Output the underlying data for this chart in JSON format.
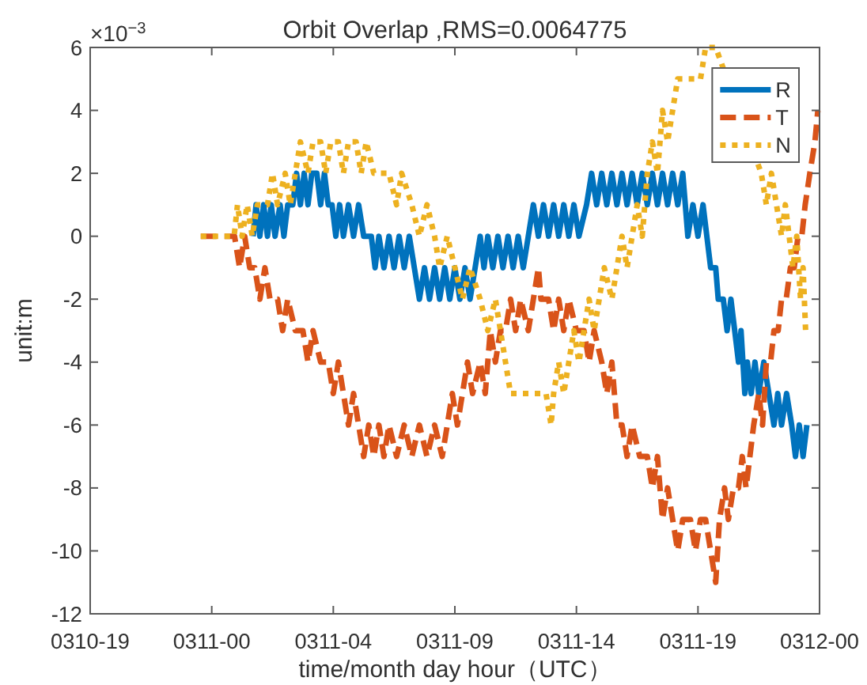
{
  "chart_data": {
    "type": "line",
    "title": "Orbit Overlap ,RMS=0.0064775",
    "xlabel": "time/month day hour（UTC）",
    "ylabel": "unit:m",
    "annotations": [
      "×10$^{−3}$"
    ],
    "xlim": [
      "--03-10T19:12",
      "--03-12T00:00"
    ],
    "xticks": [
      {
        "value": "--03-10T19:12",
        "label": "0310-19"
      },
      {
        "value": "--03-11T00:00",
        "label": "0311-00"
      },
      {
        "value": "--03-11T04:48",
        "label": "0311-04"
      },
      {
        "value": "--03-11T09:36",
        "label": "0311-09"
      },
      {
        "value": "--03-11T14:24",
        "label": "0311-14"
      },
      {
        "value": "--03-11T19:12",
        "label": "0311-19"
      },
      {
        "value": "--03-12T00:00",
        "label": "0312-00"
      }
    ],
    "ylim": [
      -12,
      6
    ],
    "yticks": [
      -12,
      -10,
      -8,
      -6,
      -4,
      -2,
      0,
      2,
      4,
      6
    ],
    "legend": "top right",
    "series": [
      {
        "name": "R",
        "color": "#0072bd",
        "line_style": "solid",
        "x": [
          "--03-11T01:38",
          "--03-11T01:45",
          "--03-11T01:54",
          "--03-11T02:03",
          "--03-11T02:12",
          "--03-11T02:21",
          "--03-11T02:30",
          "--03-11T02:42",
          "--03-11T02:51",
          "--03-11T03:00",
          "--03-11T03:12",
          "--03-11T03:21",
          "--03-11T03:30",
          "--03-11T03:39",
          "--03-11T03:48",
          "--03-11T03:57",
          "--03-11T04:09",
          "--03-11T04:18",
          "--03-11T04:27",
          "--03-11T04:36",
          "--03-11T04:45",
          "--03-11T04:54",
          "--03-11T05:03",
          "--03-11T05:12",
          "--03-11T05:24",
          "--03-11T05:36",
          "--03-11T05:48",
          "--03-11T06:00",
          "--03-11T06:18",
          "--03-11T06:27",
          "--03-11T06:36",
          "--03-11T06:48",
          "--03-11T07:00",
          "--03-11T07:12",
          "--03-11T07:24",
          "--03-11T07:36",
          "--03-11T07:48",
          "--03-11T08:00",
          "--03-11T08:12",
          "--03-11T08:24",
          "--03-11T08:36",
          "--03-11T08:48",
          "--03-11T09:00",
          "--03-11T09:12",
          "--03-11T09:24",
          "--03-11T09:36",
          "--03-11T09:48",
          "--03-11T10:00",
          "--03-11T10:12",
          "--03-11T10:24",
          "--03-11T10:36",
          "--03-11T10:45",
          "--03-11T10:54",
          "--03-11T11:06",
          "--03-11T11:18",
          "--03-11T11:30",
          "--03-11T11:42",
          "--03-11T11:54",
          "--03-11T12:06",
          "--03-11T12:18",
          "--03-11T12:30",
          "--03-11T12:42",
          "--03-11T12:54",
          "--03-11T13:06",
          "--03-11T13:18",
          "--03-11T13:30",
          "--03-11T13:42",
          "--03-11T13:54",
          "--03-11T14:06",
          "--03-11T14:18",
          "--03-11T14:30",
          "--03-11T14:48",
          "--03-11T15:00",
          "--03-11T15:12",
          "--03-11T15:24",
          "--03-11T15:36",
          "--03-11T15:48",
          "--03-11T16:00",
          "--03-11T16:12",
          "--03-11T16:24",
          "--03-11T16:36",
          "--03-11T16:48",
          "--03-11T17:00",
          "--03-11T17:12",
          "--03-11T17:24",
          "--03-11T17:36",
          "--03-11T17:48",
          "--03-11T18:00",
          "--03-11T18:12",
          "--03-11T18:24",
          "--03-11T18:36",
          "--03-11T18:48",
          "--03-11T19:00",
          "--03-11T19:12",
          "--03-11T19:24",
          "--03-11T19:33",
          "--03-11T19:42",
          "--03-11T19:54",
          "--03-11T20:00",
          "--03-11T20:12",
          "--03-11T20:21",
          "--03-11T20:30",
          "--03-11T20:39",
          "--03-11T20:48",
          "--03-11T20:54",
          "--03-11T21:03",
          "--03-11T21:09",
          "--03-11T21:18",
          "--03-11T21:27",
          "--03-11T21:36",
          "--03-11T21:48",
          "--03-11T22:00",
          "--03-11T22:12",
          "--03-11T22:21",
          "--03-11T22:30",
          "--03-11T22:42",
          "--03-11T22:54",
          "--03-11T23:03",
          "--03-11T23:12",
          "--03-11T23:21",
          "--03-11T23:30"
        ],
        "values": [
          0,
          1,
          0,
          1,
          0,
          1,
          0,
          1,
          0,
          1,
          1,
          2,
          1,
          2,
          1,
          2,
          2,
          1,
          2,
          1,
          1,
          0,
          1,
          0,
          1,
          0,
          1,
          0,
          0,
          -1,
          0,
          -1,
          0,
          -1,
          0,
          -1,
          0,
          -1,
          -2,
          -1,
          -2,
          -1,
          -2,
          -1,
          -2,
          -1,
          -2,
          -1,
          -2,
          -1,
          0,
          -1,
          0,
          -1,
          0,
          -1,
          0,
          -1,
          0,
          -1,
          0,
          1,
          0,
          1,
          0,
          1,
          0,
          1,
          0,
          1,
          0,
          1,
          2,
          1,
          2,
          1,
          2,
          1,
          2,
          1,
          2,
          1,
          2,
          1,
          2,
          1,
          2,
          1,
          2,
          1,
          2,
          0,
          1,
          0,
          1,
          0,
          -1,
          -1,
          -2,
          -2,
          -3,
          -2,
          -3,
          -4,
          -3,
          -5,
          -4,
          -5,
          -4,
          -5,
          -4,
          -5,
          -6,
          -5,
          -6,
          -5,
          -6,
          -7,
          -6,
          -7,
          -6
        ]
      },
      {
        "name": "T",
        "color": "#d95319",
        "line_style": "dashed",
        "x": [
          "--03-10T23:34",
          "--03-11T00:54",
          "--03-11T01:06",
          "--03-11T01:18",
          "--03-11T01:30",
          "--03-11T01:42",
          "--03-11T01:54",
          "--03-11T02:06",
          "--03-11T02:18",
          "--03-11T02:36",
          "--03-11T02:48",
          "--03-11T03:00",
          "--03-11T03:18",
          "--03-11T03:36",
          "--03-11T03:48",
          "--03-11T04:00",
          "--03-11T04:18",
          "--03-11T04:36",
          "--03-11T04:48",
          "--03-11T05:00",
          "--03-11T05:12",
          "--03-11T05:24",
          "--03-11T05:36",
          "--03-11T05:48",
          "--03-11T06:00",
          "--03-11T06:12",
          "--03-11T06:24",
          "--03-11T06:36",
          "--03-11T06:48",
          "--03-11T07:00",
          "--03-11T07:18",
          "--03-11T07:36",
          "--03-11T07:54",
          "--03-11T08:12",
          "--03-11T08:30",
          "--03-11T08:48",
          "--03-11T09:06",
          "--03-11T09:18",
          "--03-11T09:30",
          "--03-11T09:42",
          "--03-11T09:54",
          "--03-11T10:06",
          "--03-11T10:18",
          "--03-11T10:36",
          "--03-11T10:48",
          "--03-11T11:00",
          "--03-11T11:12",
          "--03-11T11:24",
          "--03-11T11:36",
          "--03-11T11:48",
          "--03-11T12:00",
          "--03-11T12:12",
          "--03-11T12:30",
          "--03-11T12:42",
          "--03-11T12:54",
          "--03-11T13:00",
          "--03-11T13:18",
          "--03-11T13:30",
          "--03-11T13:42",
          "--03-11T13:54",
          "--03-11T14:06",
          "--03-11T14:24",
          "--03-11T14:42",
          "--03-11T14:54",
          "--03-11T15:06",
          "--03-11T15:24",
          "--03-11T15:36",
          "--03-11T15:48",
          "--03-11T16:00",
          "--03-11T16:12",
          "--03-11T16:24",
          "--03-11T16:36",
          "--03-11T16:54",
          "--03-11T17:12",
          "--03-11T17:24",
          "--03-11T17:36",
          "--03-11T17:48",
          "--03-11T18:00",
          "--03-11T18:12",
          "--03-11T18:24",
          "--03-11T18:36",
          "--03-11T18:54",
          "--03-11T19:06",
          "--03-11T19:18",
          "--03-11T19:30",
          "--03-11T19:42",
          "--03-11T19:54",
          "--03-11T20:03",
          "--03-11T20:15",
          "--03-11T20:24",
          "--03-11T20:36",
          "--03-11T20:48",
          "--03-11T20:57",
          "--03-11T21:06",
          "--03-11T21:15",
          "--03-11T21:24",
          "--03-11T21:36",
          "--03-11T21:45",
          "--03-11T21:54",
          "--03-11T22:04",
          "--03-11T22:12",
          "--03-11T22:22",
          "--03-11T22:30",
          "--03-11T22:41",
          "--03-11T22:51",
          "--03-11T23:00",
          "--03-11T23:09",
          "--03-11T23:18",
          "--03-11T23:26",
          "--03-11T23:37",
          "--03-11T23:49",
          "--03-11T23:56"
        ],
        "values": [
          0,
          0,
          -1,
          0,
          -1,
          -1,
          -2,
          -1,
          -2,
          -2,
          -3,
          -2,
          -3,
          -3,
          -4,
          -3,
          -4,
          -4,
          -5,
          -4,
          -5,
          -6,
          -5,
          -6,
          -7,
          -6,
          -7,
          -6,
          -7,
          -6,
          -7,
          -6,
          -7,
          -6,
          -7,
          -6,
          -7,
          -6,
          -5,
          -6,
          -5,
          -4,
          -5,
          -4,
          -5,
          -3,
          -4,
          -3,
          -3,
          -2,
          -3,
          -2,
          -3,
          -2,
          -1,
          -2,
          -2,
          -3,
          -2,
          -3,
          -2,
          -3,
          -3,
          -4,
          -3,
          -4,
          -5,
          -4,
          -6,
          -6,
          -7,
          -6,
          -7,
          -7,
          -8,
          -7,
          -9,
          -8,
          -9,
          -10,
          -9,
          -9,
          -10,
          -9,
          -9,
          -10,
          -11,
          -9,
          -8,
          -9,
          -8,
          -8,
          -7,
          -8,
          -7,
          -6,
          -5,
          -6,
          -4,
          -4,
          -3,
          -3,
          -2,
          -2,
          -1,
          -1,
          0,
          0,
          1,
          2,
          3,
          4
        ]
      },
      {
        "name": "N",
        "color": "#edb120",
        "line_style": "dotted",
        "x": [
          "--03-10T23:34",
          "--03-11T00:53",
          "--03-11T01:01",
          "--03-11T01:12",
          "--03-11T01:24",
          "--03-11T01:36",
          "--03-11T01:48",
          "--03-11T02:12",
          "--03-11T02:24",
          "--03-11T02:36",
          "--03-11T02:54",
          "--03-11T03:06",
          "--03-11T03:18",
          "--03-11T03:30",
          "--03-11T03:48",
          "--03-11T04:00",
          "--03-11T04:18",
          "--03-11T04:30",
          "--03-11T04:42",
          "--03-11T05:00",
          "--03-11T05:12",
          "--03-11T05:24",
          "--03-11T05:42",
          "--03-11T05:54",
          "--03-11T06:06",
          "--03-11T06:24",
          "--03-11T07:00",
          "--03-11T07:18",
          "--03-11T07:30",
          "--03-11T07:54",
          "--03-11T08:12",
          "--03-11T08:30",
          "--03-11T08:48",
          "--03-11T09:00",
          "--03-11T09:18",
          "--03-11T09:36",
          "--03-11T09:54",
          "--03-11T10:12",
          "--03-11T10:36",
          "--03-11T10:54",
          "--03-11T11:12",
          "--03-11T11:24",
          "--03-11T11:36",
          "--03-11T11:48",
          "--03-11T13:12",
          "--03-11T13:24",
          "--03-11T13:30",
          "--03-11T13:42",
          "--03-11T13:54",
          "--03-11T14:06",
          "--03-11T14:18",
          "--03-11T14:30",
          "--03-11T14:42",
          "--03-11T14:54",
          "--03-11T15:06",
          "--03-11T15:18",
          "--03-11T15:30",
          "--03-11T15:48",
          "--03-11T16:00",
          "--03-11T16:12",
          "--03-11T16:24",
          "--03-11T16:36",
          "--03-11T16:48",
          "--03-11T17:00",
          "--03-11T17:12",
          "--03-11T17:24",
          "--03-11T17:36",
          "--03-11T17:48",
          "--03-11T18:00",
          "--03-11T18:12",
          "--03-11T18:24",
          "--03-11T18:42",
          "--03-11T19:00",
          "--03-11T19:18",
          "--03-11T19:30",
          "--03-11T19:45",
          "--03-11T19:54",
          "--03-11T21:42",
          "--03-11T21:54",
          "--03-11T22:06",
          "--03-11T22:18",
          "--03-11T22:30",
          "--03-11T22:39",
          "--03-11T22:48",
          "--03-11T22:57",
          "--03-11T23:06",
          "--03-11T23:15",
          "--03-11T23:21",
          "--03-11T23:27"
        ],
        "values": [
          0,
          0,
          1,
          0,
          1,
          0,
          1,
          1,
          2,
          1,
          2,
          1,
          2,
          3,
          2,
          3,
          3,
          2,
          3,
          3,
          2,
          3,
          3,
          2,
          3,
          2,
          2,
          1,
          2,
          1,
          0,
          1,
          0,
          -1,
          0,
          -1,
          -2,
          -1,
          -2,
          -3,
          -2,
          -3,
          -4,
          -5,
          -5,
          -6,
          -5,
          -4,
          -5,
          -4,
          -3,
          -4,
          -3,
          -2,
          -3,
          -2,
          -1,
          -2,
          -1,
          0,
          -1,
          0,
          1,
          0,
          2,
          3,
          2,
          4,
          3,
          4,
          5,
          5,
          5,
          5,
          6,
          6,
          6,
          2,
          1,
          2,
          1,
          0,
          1,
          0,
          -1,
          0,
          -2,
          -1,
          -3
        ]
      }
    ]
  }
}
